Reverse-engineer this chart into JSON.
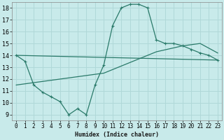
{
  "xlabel": "Humidex (Indice chaleur)",
  "bg_color": "#c8eaea",
  "grid_color": "#b0d8d8",
  "line_color": "#2a7a6a",
  "xlim": [
    -0.5,
    23.5
  ],
  "ylim": [
    8.5,
    18.5
  ],
  "yticks": [
    9,
    10,
    11,
    12,
    13,
    14,
    15,
    16,
    17,
    18
  ],
  "xticks": [
    0,
    1,
    2,
    3,
    4,
    5,
    6,
    7,
    8,
    9,
    10,
    11,
    12,
    13,
    14,
    15,
    16,
    17,
    18,
    19,
    20,
    21,
    22,
    23
  ],
  "line1_x": [
    0,
    1,
    2,
    3,
    4,
    5,
    6,
    7,
    8,
    9,
    10,
    11,
    12,
    13,
    14,
    15,
    16,
    17,
    18,
    19,
    20,
    21,
    22,
    23
  ],
  "line1_y": [
    14.0,
    13.5,
    11.5,
    10.9,
    10.5,
    10.1,
    9.0,
    9.5,
    9.0,
    11.5,
    13.2,
    16.5,
    18.0,
    18.3,
    18.3,
    18.0,
    15.3,
    15.0,
    15.0,
    14.8,
    14.5,
    14.2,
    14.0,
    13.6
  ],
  "line2_x": [
    0,
    23
  ],
  "line2_y": [
    14.0,
    13.6
  ],
  "line3_x": [
    0,
    10,
    16,
    19,
    21,
    23
  ],
  "line3_y": [
    11.5,
    12.5,
    14.3,
    14.8,
    15.0,
    14.2
  ]
}
